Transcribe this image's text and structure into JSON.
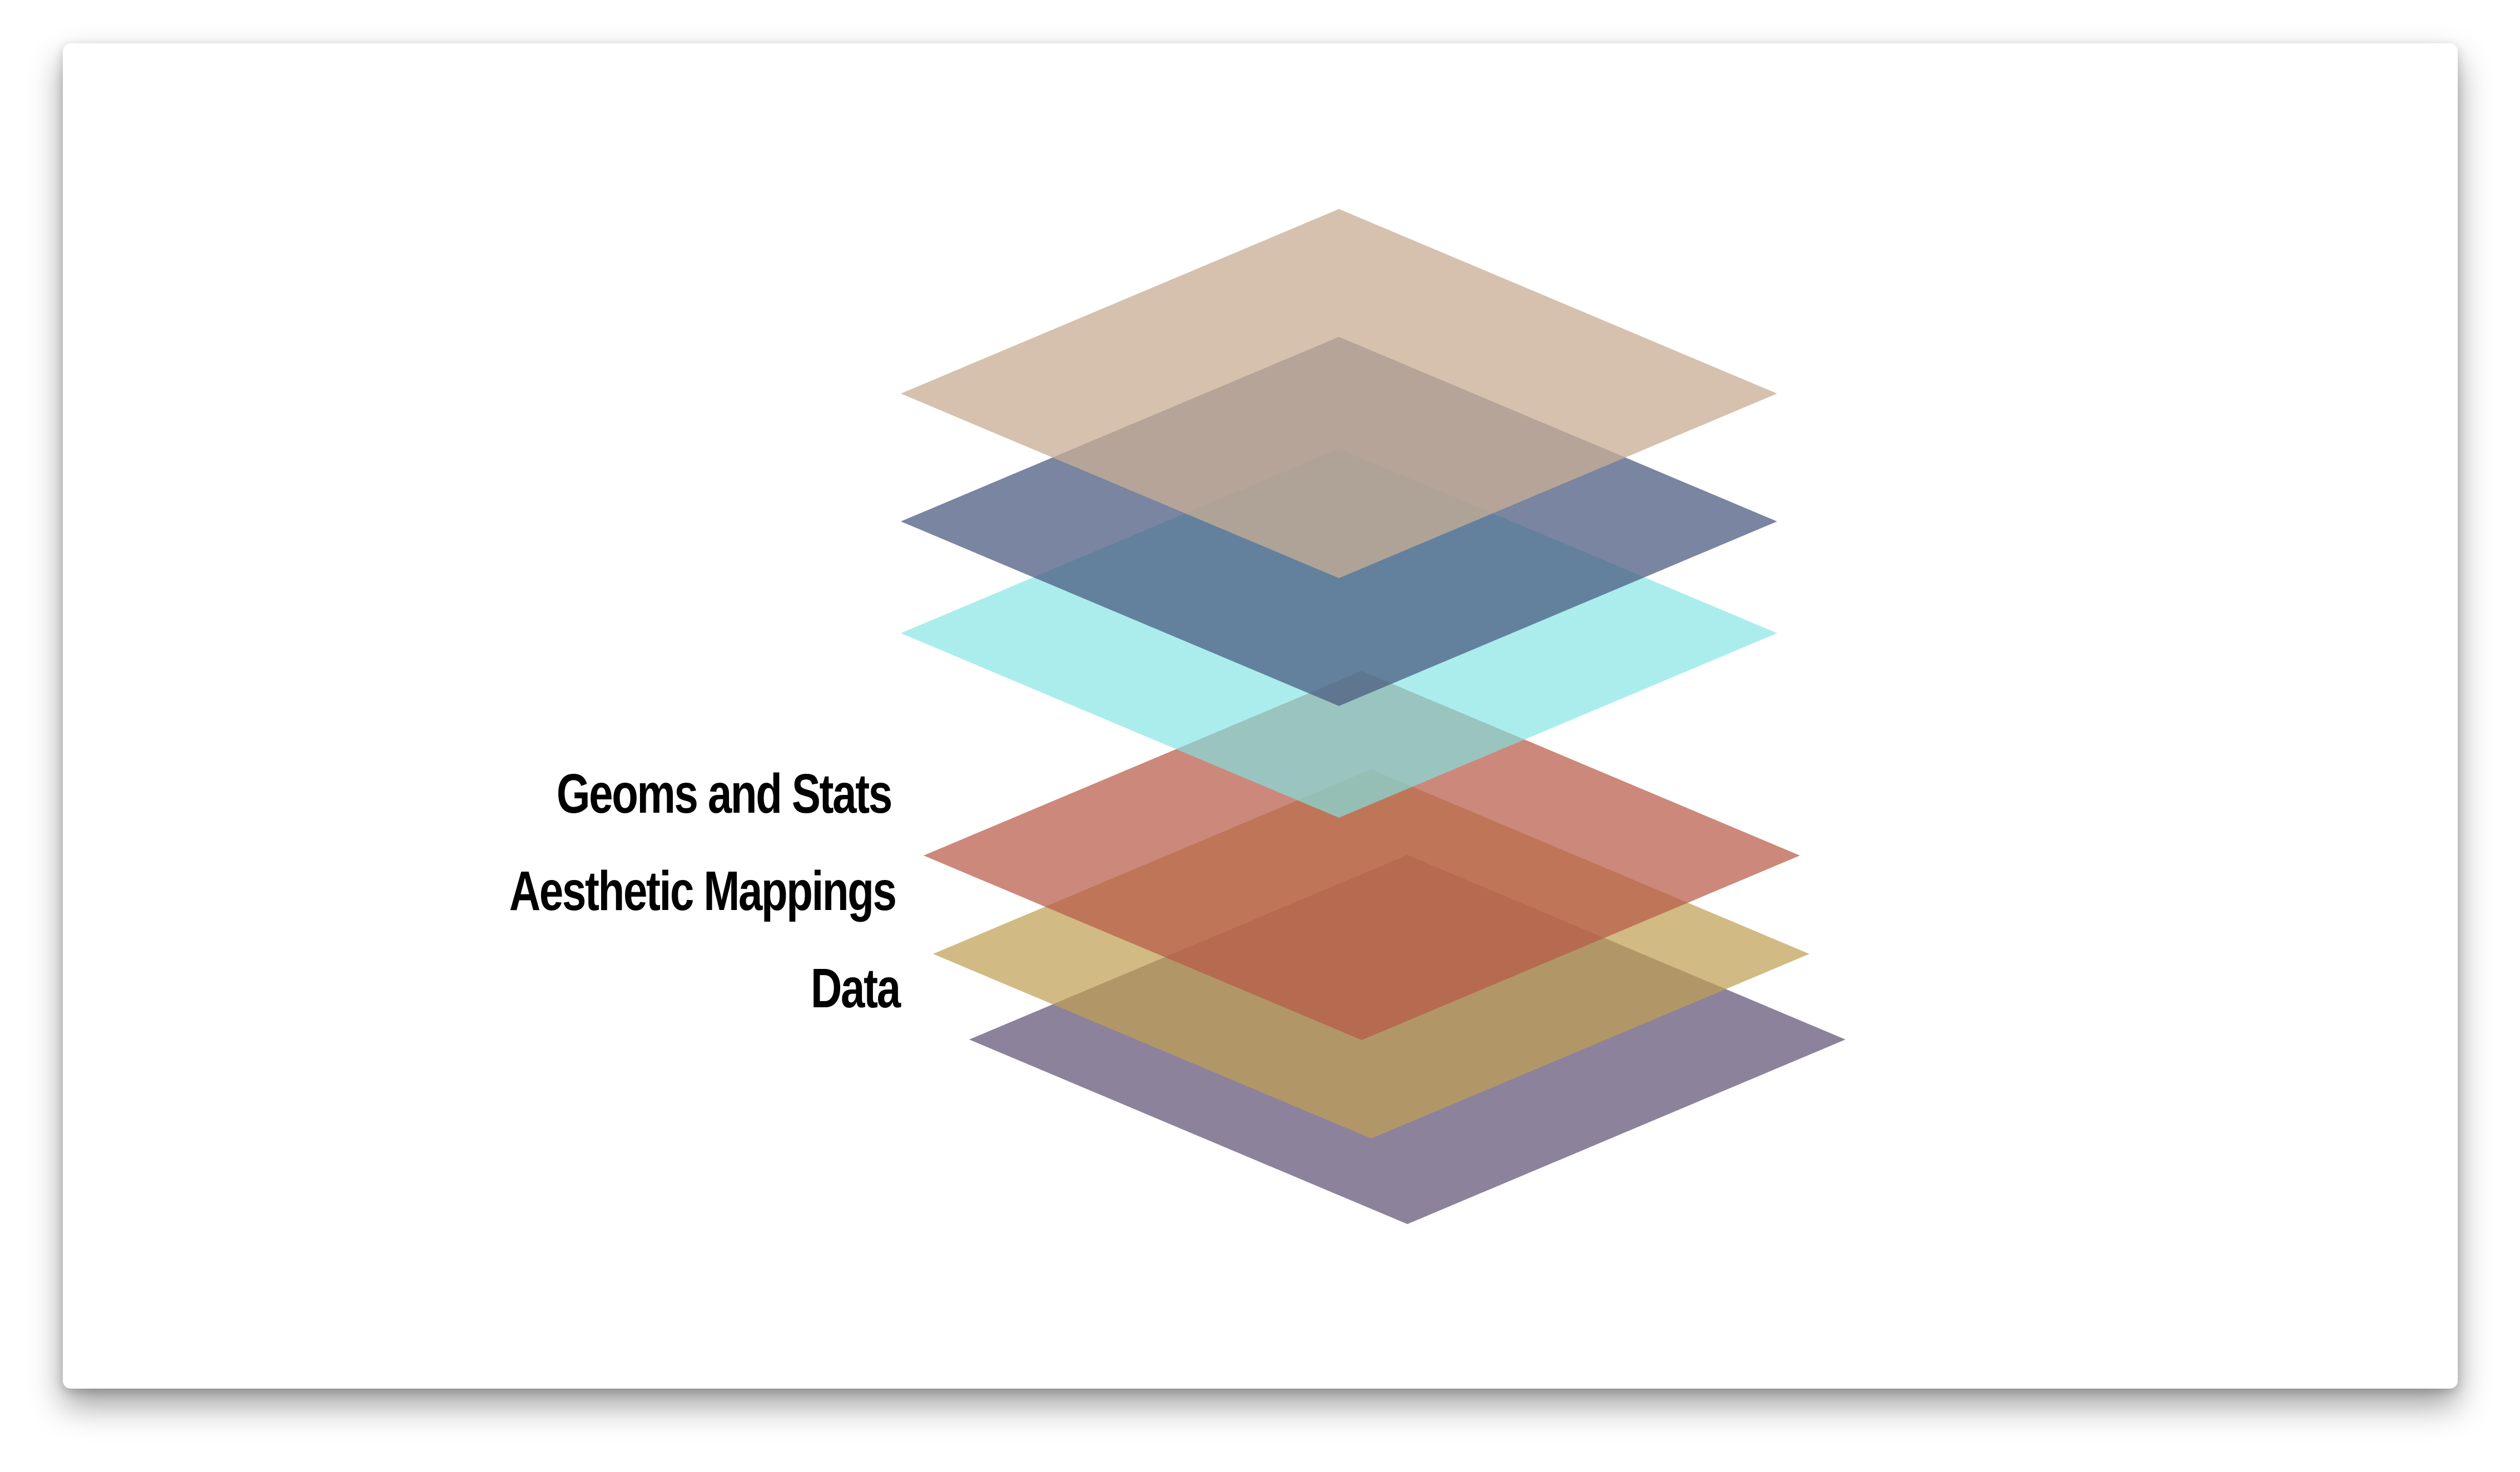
{
  "diagram": {
    "labels": {
      "geoms_stats": "Geoms and Stats",
      "aesthetic_mappings": "Aesthetic Mappings",
      "data": "Data"
    },
    "layers": [
      {
        "id": "layer-top-tan",
        "color": "#c8ae94"
      },
      {
        "id": "layer-slate-blue",
        "color": "#4a5a80"
      },
      {
        "id": "layer-cyan",
        "color": "#7fe3e3"
      },
      {
        "id": "layer-geoms-stats",
        "color": "#b85a47"
      },
      {
        "id": "layer-aesthetic-mappings",
        "color": "#bfa055"
      },
      {
        "id": "layer-data",
        "color": "#4d3c63"
      }
    ]
  }
}
